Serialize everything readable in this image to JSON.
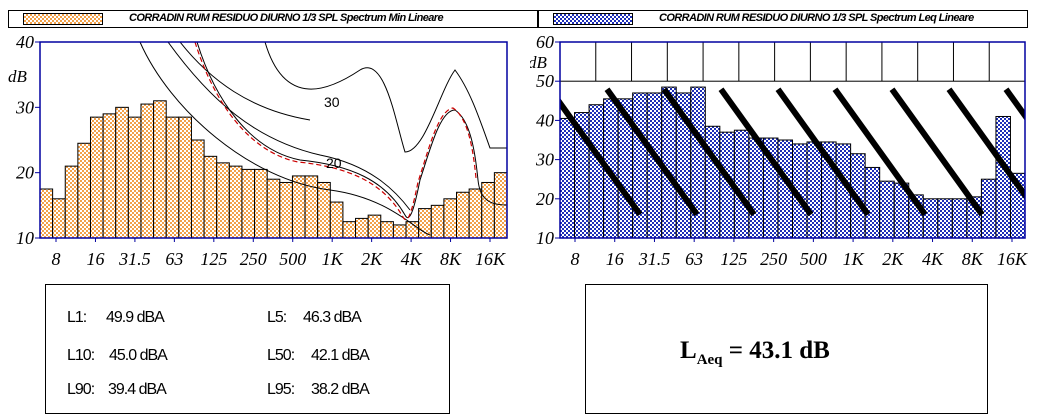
{
  "legend_left": "CORRADIN RUM RESIDUO DIURNO 1/3 SPL Spectrum Min Lineare",
  "legend_right": "CORRADIN RUM RESIDUO DIURNO 1/3 SPL Spectrum Leq Lineare",
  "colors": {
    "orange": "#f2a14a",
    "blue": "#1e2fb8",
    "plot_border": "#0000a0",
    "contour": "#000000",
    "contour_red": "#cc0000"
  },
  "chart_data": [
    {
      "type": "bar",
      "series_name": "CORRADIN RUM RESIDUO DIURNO 1/3 SPL Spectrum Min Lineare",
      "ylabel": "dB",
      "ylim": [
        10,
        40
      ],
      "yticks": [
        "10",
        "20",
        "30",
        "40"
      ],
      "xticks": [
        "8",
        "16",
        "31.5",
        "63",
        "125",
        "250",
        "500",
        "1K",
        "2K",
        "4K",
        "8K",
        "16K"
      ],
      "values": [
        17.5,
        16,
        21,
        24.5,
        28.5,
        29,
        30,
        28.5,
        30.5,
        31,
        28.5,
        28.5,
        25,
        22.5,
        21.5,
        21,
        20.5,
        20.5,
        19,
        18.5,
        19.5,
        19.5,
        18.5,
        15.5,
        12.5,
        13,
        13.5,
        12.5,
        12,
        12.5,
        14.5,
        15,
        16,
        17,
        17.5,
        18.5,
        20
      ],
      "contour_labels": [
        "30",
        "20"
      ]
    },
    {
      "type": "bar",
      "series_name": "CORRADIN RUM RESIDUO DIURNO 1/3 SPL Spectrum Leq Lineare",
      "ylabel": "dB",
      "ylim": [
        10,
        60
      ],
      "yticks": [
        "10",
        "20",
        "30",
        "40",
        "50",
        "60"
      ],
      "xticks": [
        "8",
        "16",
        "31.5",
        "63",
        "125",
        "250",
        "500",
        "1K",
        "2K",
        "4K",
        "8K",
        "16K"
      ],
      "values": [
        40.5,
        42,
        44,
        45.5,
        45.5,
        47,
        47,
        48.5,
        47,
        48.5,
        38.5,
        37,
        37.5,
        35.5,
        35.5,
        35,
        34,
        34.5,
        34.5,
        34,
        31.5,
        28,
        24.5,
        24,
        21,
        20,
        20,
        20,
        20.5,
        25,
        41,
        26.5
      ]
    }
  ],
  "stats": [
    {
      "label": "L1:",
      "value": "49.9 dBA"
    },
    {
      "label": "L5:",
      "value": "46.3 dBA"
    },
    {
      "label": "L10:",
      "value": "45.0 dBA"
    },
    {
      "label": "L50:",
      "value": "42.1 dBA"
    },
    {
      "label": "L90:",
      "value": "39.4 dBA"
    },
    {
      "label": "L95:",
      "value": "38.2 dBA"
    }
  ],
  "laeq": {
    "symbol": "L",
    "subscript": "Aeq",
    "value": "= 43.1 dB"
  }
}
